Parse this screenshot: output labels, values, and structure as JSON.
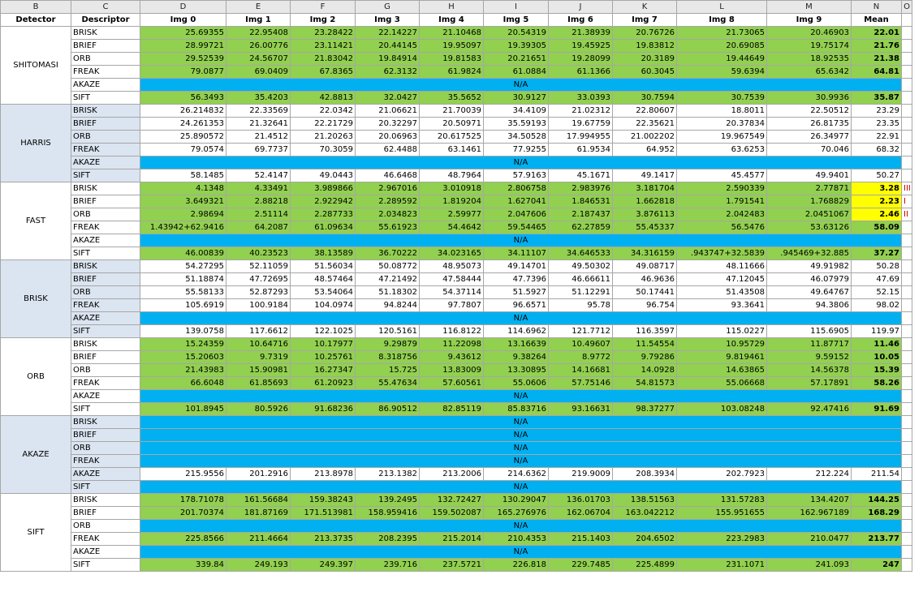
{
  "column_letters": [
    "B",
    "C",
    "D",
    "E",
    "F",
    "G",
    "H",
    "I",
    "J",
    "K",
    "L",
    "M",
    "N",
    "O"
  ],
  "headers": [
    "Detector",
    "Descriptor",
    "Img 0",
    "Img 1",
    "Img 2",
    "Img 3",
    "Img 4",
    "Img 5",
    "Img 6",
    "Img 7",
    "Img 8",
    "Img 9",
    "Mean"
  ],
  "na_label": "N/A",
  "colors": {
    "green": "#92d050",
    "blue": "#00b0f0",
    "yellow": "#ffff00",
    "desc_blue": "#dbe5f1"
  },
  "groups": [
    {
      "detector": "SHITOMASI",
      "shade": "w",
      "rows": [
        {
          "d": "BRISK",
          "fill": "g",
          "bold": true,
          "mark": "",
          "values": [
            "25.69355",
            "22.95408",
            "23.28422",
            "22.14227",
            "21.10468",
            "20.54319",
            "21.38939",
            "20.76726",
            "21.73065",
            "20.46903"
          ],
          "mean": "22.01"
        },
        {
          "d": "BRIEF",
          "fill": "g",
          "bold": true,
          "mark": "",
          "values": [
            "28.99721",
            "26.00776",
            "23.11421",
            "20.44145",
            "19.95097",
            "19.39305",
            "19.45925",
            "19.83812",
            "20.69085",
            "19.75174"
          ],
          "mean": "21.76"
        },
        {
          "d": "ORB",
          "fill": "g",
          "bold": true,
          "mark": "",
          "values": [
            "29.52539",
            "24.56707",
            "21.83042",
            "19.84914",
            "19.81583",
            "20.21651",
            "19.28099",
            "20.3189",
            "19.44649",
            "18.92535"
          ],
          "mean": "21.38"
        },
        {
          "d": "FREAK",
          "fill": "g",
          "bold": true,
          "mark": "",
          "values": [
            "79.0877",
            "69.0409",
            "67.8365",
            "62.3132",
            "61.9824",
            "61.0884",
            "61.1366",
            "60.3045",
            "59.6394",
            "65.6342"
          ],
          "mean": "64.81"
        },
        {
          "d": "AKAZE",
          "fill": "na"
        },
        {
          "d": "SIFT",
          "fill": "g",
          "bold": true,
          "mark": "",
          "values": [
            "56.3493",
            "35.4203",
            "42.8813",
            "32.0427",
            "35.5652",
            "30.9127",
            "33.0393",
            "30.7594",
            "30.7539",
            "30.9936"
          ],
          "mean": "35.87"
        }
      ]
    },
    {
      "detector": "HARRIS",
      "shade": "b",
      "rows": [
        {
          "d": "BRISK",
          "fill": "wh",
          "bold": false,
          "mark": "",
          "values": [
            "26.214832",
            "22.33569",
            "22.0342",
            "21.06621",
            "21.70039",
            "34.4109",
            "21.02312",
            "22.80607",
            "18.8011",
            "22.50512"
          ],
          "mean": "23.29"
        },
        {
          "d": "BRIEF",
          "fill": "wh",
          "bold": false,
          "mark": "",
          "values": [
            "24.261353",
            "21.32641",
            "22.21729",
            "20.32297",
            "20.50971",
            "35.59193",
            "19.67759",
            "22.35621",
            "20.37834",
            "26.81735"
          ],
          "mean": "23.35"
        },
        {
          "d": "ORB",
          "fill": "wh",
          "bold": false,
          "mark": "",
          "values": [
            "25.890572",
            "21.4512",
            "21.20263",
            "20.06963",
            "20.617525",
            "34.50528",
            "17.994955",
            "21.002202",
            "19.967549",
            "26.34977"
          ],
          "mean": "22.91"
        },
        {
          "d": "FREAK",
          "fill": "wh",
          "bold": false,
          "mark": "",
          "values": [
            "79.0574",
            "69.7737",
            "70.3059",
            "62.4488",
            "63.1461",
            "77.9255",
            "61.9534",
            "64.952",
            "63.6253",
            "70.046"
          ],
          "mean": "68.32"
        },
        {
          "d": "AKAZE",
          "fill": "na"
        },
        {
          "d": "SIFT",
          "fill": "wh",
          "bold": false,
          "mark": "",
          "values": [
            "58.1485",
            "52.4147",
            "49.0443",
            "46.6468",
            "48.7964",
            "57.9163",
            "45.1671",
            "49.1417",
            "45.4577",
            "49.9401"
          ],
          "mean": "50.27"
        }
      ]
    },
    {
      "detector": "FAST",
      "shade": "w",
      "rows": [
        {
          "d": "BRISK",
          "fill": "g",
          "bold": true,
          "mark": "III",
          "yellow": true,
          "values": [
            "4.1348",
            "4.33491",
            "3.989866",
            "2.967016",
            "3.010918",
            "2.806758",
            "2.983976",
            "3.181704",
            "2.590339",
            "2.77871"
          ],
          "mean": "3.28"
        },
        {
          "d": "BRIEF",
          "fill": "g",
          "bold": true,
          "mark": "I",
          "yellow": true,
          "values": [
            "3.649321",
            "2.88218",
            "2.922942",
            "2.289592",
            "1.819204",
            "1.627041",
            "1.846531",
            "1.662818",
            "1.791541",
            "1.768829"
          ],
          "mean": "2.23"
        },
        {
          "d": "ORB",
          "fill": "g",
          "bold": true,
          "mark": "II",
          "yellow": true,
          "values": [
            "2.98694",
            "2.51114",
            "2.287733",
            "2.034823",
            "2.59977",
            "2.047606",
            "2.187437",
            "3.876113",
            "2.042483",
            "2.0451067"
          ],
          "mean": "2.46"
        },
        {
          "d": "FREAK",
          "fill": "g",
          "bold": true,
          "mark": "",
          "values": [
            "1.43942+62.9416",
            "64.2087",
            "61.09634",
            "55.61923",
            "54.4642",
            "59.54465",
            "62.27859",
            "55.45337",
            "56.5476",
            "53.63126"
          ],
          "mean": "58.09"
        },
        {
          "d": "AKAZE",
          "fill": "na"
        },
        {
          "d": "SIFT",
          "fill": "g",
          "bold": true,
          "mark": "",
          "values": [
            "46.00839",
            "40.23523",
            "38.13589",
            "36.70222",
            "34.023165",
            "34.11107",
            "34.646533",
            "34.316159",
            ".943747+32.5839",
            ".945469+32.885"
          ],
          "mean": "37.27"
        }
      ]
    },
    {
      "detector": "BRISK",
      "shade": "b",
      "rows": [
        {
          "d": "BRISK",
          "fill": "wh",
          "bold": false,
          "mark": "",
          "values": [
            "54.27295",
            "52.11059",
            "51.56034",
            "50.08772",
            "48.95073",
            "49.14701",
            "49.50302",
            "49.08717",
            "48.11666",
            "49.91982"
          ],
          "mean": "50.28"
        },
        {
          "d": "BRIEF",
          "fill": "wh",
          "bold": false,
          "mark": "",
          "values": [
            "51.18874",
            "47.72695",
            "48.57464",
            "47.21492",
            "47.58444",
            "47.7396",
            "46.66611",
            "46.9636",
            "47.12045",
            "46.07979"
          ],
          "mean": "47.69"
        },
        {
          "d": "ORB",
          "fill": "wh",
          "bold": false,
          "mark": "",
          "values": [
            "55.58133",
            "52.87293",
            "53.54064",
            "51.18302",
            "54.37114",
            "51.5927",
            "51.12291",
            "50.17441",
            "51.43508",
            "49.64767"
          ],
          "mean": "52.15"
        },
        {
          "d": "FREAK",
          "fill": "wh",
          "bold": false,
          "mark": "",
          "values": [
            "105.6919",
            "100.9184",
            "104.0974",
            "94.8244",
            "97.7807",
            "96.6571",
            "95.78",
            "96.754",
            "93.3641",
            "94.3806"
          ],
          "mean": "98.02"
        },
        {
          "d": "AKAZE",
          "fill": "na"
        },
        {
          "d": "SIFT",
          "fill": "wh",
          "bold": false,
          "mark": "",
          "values": [
            "139.0758",
            "117.6612",
            "122.1025",
            "120.5161",
            "116.8122",
            "114.6962",
            "121.7712",
            "116.3597",
            "115.0227",
            "115.6905"
          ],
          "mean": "119.97"
        }
      ]
    },
    {
      "detector": "ORB",
      "shade": "w",
      "rows": [
        {
          "d": "BRISK",
          "fill": "g",
          "bold": true,
          "mark": "",
          "values": [
            "15.24359",
            "10.64716",
            "10.17977",
            "9.29879",
            "11.22098",
            "13.16639",
            "10.49607",
            "11.54554",
            "10.95729",
            "11.87717"
          ],
          "mean": "11.46"
        },
        {
          "d": "BRIEF",
          "fill": "g",
          "bold": true,
          "mark": "",
          "values": [
            "15.20603",
            "9.7319",
            "10.25761",
            "8.318756",
            "9.43612",
            "9.38264",
            "8.9772",
            "9.79286",
            "9.819461",
            "9.59152"
          ],
          "mean": "10.05"
        },
        {
          "d": "ORB",
          "fill": "g",
          "bold": true,
          "mark": "",
          "values": [
            "21.43983",
            "15.90981",
            "16.27347",
            "15.725",
            "13.83009",
            "13.30895",
            "14.16681",
            "14.0928",
            "14.63865",
            "14.56378"
          ],
          "mean": "15.39"
        },
        {
          "d": "FREAK",
          "fill": "g",
          "bold": true,
          "mark": "",
          "values": [
            "66.6048",
            "61.85693",
            "61.20923",
            "55.47634",
            "57.60561",
            "55.0606",
            "57.75146",
            "54.81573",
            "55.06668",
            "57.17891"
          ],
          "mean": "58.26"
        },
        {
          "d": "AKAZE",
          "fill": "na"
        },
        {
          "d": "SIFT",
          "fill": "g",
          "bold": true,
          "mark": "",
          "values": [
            "101.8945",
            "80.5926",
            "91.68236",
            "86.90512",
            "82.85119",
            "85.83716",
            "93.16631",
            "98.37277",
            "103.08248",
            "92.47416"
          ],
          "mean": "91.69"
        }
      ]
    },
    {
      "detector": "AKAZE",
      "shade": "b",
      "rows": [
        {
          "d": "BRISK",
          "fill": "na"
        },
        {
          "d": "BRIEF",
          "fill": "na"
        },
        {
          "d": "ORB",
          "fill": "na"
        },
        {
          "d": "FREAK",
          "fill": "na"
        },
        {
          "d": "AKAZE",
          "fill": "wh",
          "bold": false,
          "mark": "",
          "values": [
            "215.9556",
            "201.2916",
            "213.8978",
            "213.1382",
            "213.2006",
            "214.6362",
            "219.9009",
            "208.3934",
            "202.7923",
            "212.224"
          ],
          "mean": "211.54"
        },
        {
          "d": "SIFT",
          "fill": "na"
        }
      ]
    },
    {
      "detector": "SIFT",
      "shade": "w",
      "rows": [
        {
          "d": "BRISK",
          "fill": "g",
          "bold": true,
          "mark": "",
          "values": [
            "178.71078",
            "161.56684",
            "159.38243",
            "139.2495",
            "132.72427",
            "130.29047",
            "136.01703",
            "138.51563",
            "131.57283",
            "134.4207"
          ],
          "mean": "144.25"
        },
        {
          "d": "BRIEF",
          "fill": "g",
          "bold": true,
          "mark": "",
          "values": [
            "201.70374",
            "181.87169",
            "171.513981",
            "158.959416",
            "159.502087",
            "165.276976",
            "162.06704",
            "163.042212",
            "155.951655",
            "162.967189"
          ],
          "mean": "168.29"
        },
        {
          "d": "ORB",
          "fill": "na"
        },
        {
          "d": "FREAK",
          "fill": "g",
          "bold": true,
          "mark": "",
          "values": [
            "225.8566",
            "211.4664",
            "213.3735",
            "208.2395",
            "215.2014",
            "210.4353",
            "215.1403",
            "204.6502",
            "223.2983",
            "210.0477"
          ],
          "mean": "213.77"
        },
        {
          "d": "AKAZE",
          "fill": "na"
        },
        {
          "d": "SIFT",
          "fill": "g",
          "bold": true,
          "mark": "",
          "values": [
            "339.84",
            "249.193",
            "249.397",
            "239.716",
            "237.5721",
            "226.818",
            "229.7485",
            "225.4899",
            "231.1071",
            "241.093"
          ],
          "mean": "247"
        }
      ]
    }
  ]
}
